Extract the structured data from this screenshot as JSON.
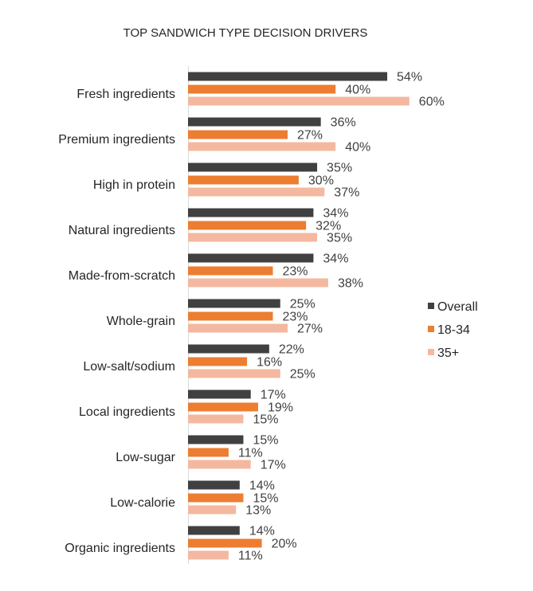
{
  "chart_data": {
    "type": "bar",
    "orientation": "horizontal",
    "title": "TOP SANDWICH TYPE DECISION DRIVERS",
    "categories": [
      "Fresh ingredients",
      "Premium ingredients",
      "High in protein",
      "Natural ingredients",
      "Made-from-scratch",
      "Whole-grain",
      "Low-salt/sodium",
      "Local ingredients",
      "Low-sugar",
      "Low-calorie",
      "Organic ingredients"
    ],
    "series": [
      {
        "name": "Overall",
        "color": "#404040",
        "values": [
          54,
          36,
          35,
          34,
          34,
          25,
          22,
          17,
          15,
          14,
          14
        ]
      },
      {
        "name": "18-34",
        "color": "#ED7D31",
        "values": [
          40,
          27,
          30,
          32,
          23,
          23,
          16,
          19,
          11,
          15,
          20
        ]
      },
      {
        "name": "35+",
        "color": "#F4B8A0",
        "values": [
          60,
          40,
          37,
          35,
          38,
          27,
          25,
          15,
          17,
          13,
          11
        ]
      }
    ],
    "value_suffix": "%",
    "xlim": [
      0,
      100
    ],
    "xlabel": "",
    "ylabel": "",
    "grid": false,
    "legend": "right"
  }
}
